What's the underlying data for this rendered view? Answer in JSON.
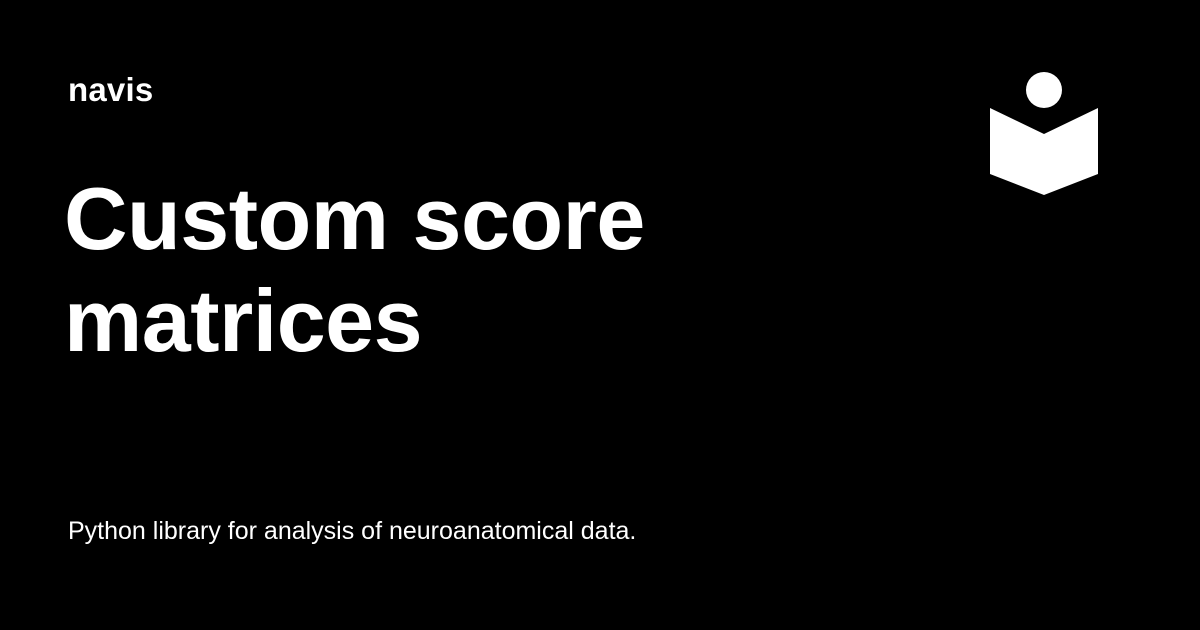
{
  "site": {
    "name": "navis"
  },
  "page": {
    "title": "Custom score matrices",
    "description": "Python library for analysis of neuroanatomical data."
  },
  "logo": {
    "icon": "reader-book-icon",
    "color": "#ffffff"
  },
  "theme": {
    "background": "#000000",
    "text": "#ffffff"
  }
}
